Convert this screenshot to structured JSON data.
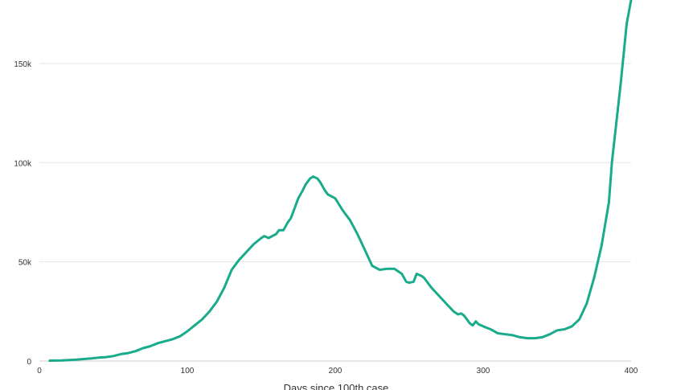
{
  "chart_data": {
    "type": "line",
    "title": "",
    "xlabel": "Days since 100th case",
    "ylabel": "",
    "xlim": [
      0,
      400
    ],
    "ylim": [
      0,
      182000
    ],
    "x_ticks": [
      0,
      100,
      200,
      300,
      400
    ],
    "x_tick_labels": [
      "0",
      "100",
      "200",
      "300",
      "400"
    ],
    "y_ticks": [
      0,
      50000,
      100000,
      150000
    ],
    "y_tick_labels": [
      "0",
      "50k",
      "100k",
      "150k"
    ],
    "grid": "horizontal",
    "colors": {
      "line": "#1aaa8c",
      "grid": "#e6e6e6",
      "baseline": "#cfcfcf",
      "text": "#333333"
    },
    "series": [
      {
        "x": [
          7,
          15,
          20,
          25,
          30,
          35,
          40,
          45,
          50,
          55,
          60,
          65,
          70,
          75,
          80,
          85,
          90,
          95,
          100,
          105,
          110,
          115,
          120,
          125,
          130,
          135,
          140,
          145,
          150,
          152,
          155,
          160,
          162,
          165,
          168,
          170,
          175,
          178,
          180,
          183,
          185,
          188,
          190,
          193,
          195,
          200,
          205,
          210,
          215,
          220,
          225,
          230,
          235,
          240,
          245,
          248,
          250,
          253,
          255,
          258,
          260,
          265,
          270,
          275,
          280,
          283,
          285,
          287,
          289,
          291,
          293,
          295,
          297,
          300,
          305,
          310,
          315,
          320,
          325,
          330,
          335,
          340,
          345,
          350,
          355,
          360,
          365,
          370,
          375,
          380,
          385,
          387,
          390,
          393,
          395,
          397,
          400
        ],
        "y": [
          200,
          300,
          500,
          700,
          1000,
          1300,
          1700,
          2000,
          2500,
          3500,
          4000,
          5000,
          6500,
          7500,
          9000,
          10000,
          11000,
          12500,
          15000,
          18000,
          21000,
          25000,
          30000,
          37000,
          46000,
          51000,
          55000,
          59000,
          62000,
          63000,
          62000,
          64000,
          66000,
          66000,
          70000,
          72000,
          82000,
          86000,
          89000,
          92000,
          93000,
          92000,
          90000,
          86000,
          84000,
          82000,
          76000,
          71000,
          64000,
          56000,
          48000,
          46000,
          46500,
          46500,
          44000,
          40000,
          39500,
          40000,
          44000,
          43000,
          42000,
          37000,
          33000,
          29000,
          25000,
          23500,
          24000,
          23000,
          21000,
          19000,
          18000,
          20000,
          18500,
          17500,
          16000,
          14000,
          13500,
          13000,
          12000,
          11500,
          11500,
          12000,
          13500,
          15500,
          16000,
          17500,
          21000,
          29000,
          42000,
          58000,
          80000,
          100000,
          120000,
          140000,
          155000,
          170000,
          182000
        ]
      }
    ]
  }
}
